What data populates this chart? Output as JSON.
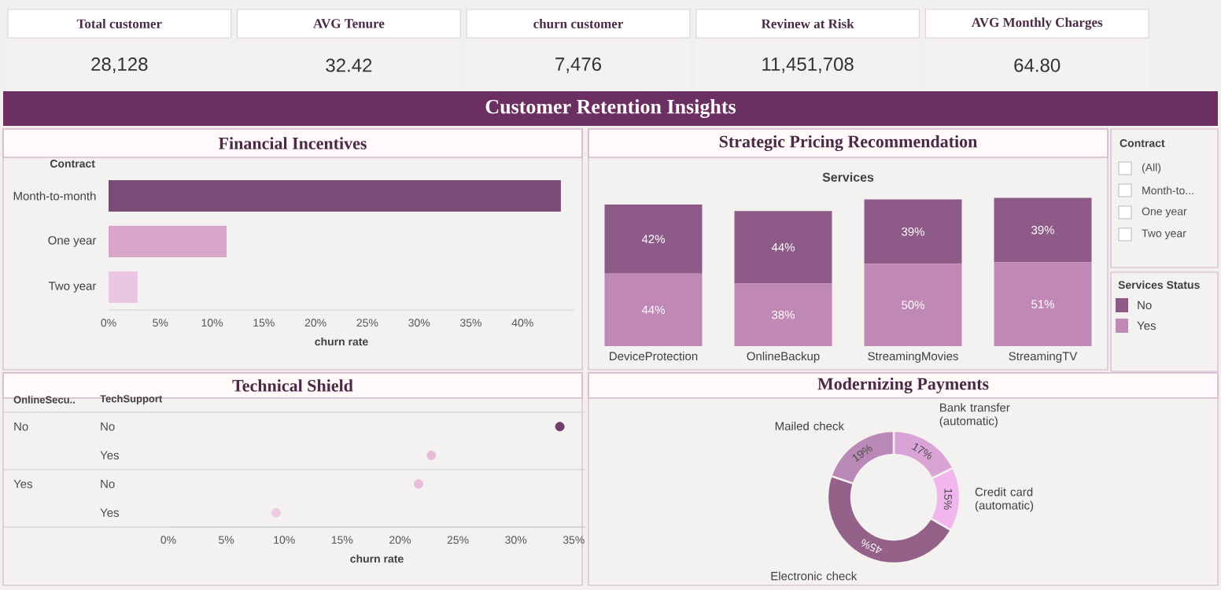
{
  "chart_data": [
    {
      "type": "other",
      "categories": [
        "Total customer",
        "AVG Tenure",
        "churn customer",
        "Revinew at Risk",
        "AVG Monthly Charges"
      ],
      "annotations": [
        "28,128",
        "32.42",
        "7,476",
        "11,451,708",
        "64.80"
      ]
    },
    {
      "type": "other",
      "title": "Customer Retention Insights"
    },
    {
      "type": "bar",
      "orientation": "horizontal",
      "title": "Financial Incentives",
      "ylabel": "Contract",
      "xlabel": "churn rate",
      "categories": [
        "Month-to-month",
        "One year",
        "Two year"
      ],
      "values": [
        43.7,
        11.4,
        2.8
      ],
      "colors": [
        "#7b4b78",
        "#d9a6ca",
        "#ebc6e2"
      ],
      "xlim": [
        0,
        45
      ],
      "xticks": [
        {
          "value": 0,
          "label": "0%"
        },
        {
          "value": 5,
          "label": "5%"
        },
        {
          "value": 10,
          "label": "10%"
        },
        {
          "value": 15,
          "label": "15%"
        },
        {
          "value": 20,
          "label": "20%"
        },
        {
          "value": 25,
          "label": "25%"
        },
        {
          "value": 30,
          "label": "30%"
        },
        {
          "value": 35,
          "label": "35%"
        },
        {
          "value": 40,
          "label": "40%"
        }
      ]
    },
    {
      "type": "bar",
      "stacked": true,
      "title": "Strategic Pricing Recommendation",
      "xlabel": "Services",
      "legend_title": "Services Status",
      "legend": "right",
      "categories": [
        "DeviceProtection",
        "OnlineBackup",
        "StreamingMovies",
        "StreamingTV"
      ],
      "series": [
        {
          "name": "Yes",
          "color": "#c088b4",
          "values": [
            44,
            38,
            50,
            51
          ],
          "value_labels": [
            "44%",
            "38%",
            "50%",
            "51%"
          ]
        },
        {
          "name": "No",
          "color": "#8e5a88",
          "values": [
            42,
            44,
            39,
            39
          ],
          "value_labels": [
            "42%",
            "44%",
            "39%",
            "39%"
          ]
        }
      ]
    },
    {
      "type": "other",
      "title": "Contract",
      "categories": [
        "(All)",
        "Month-to...",
        "One year",
        "Two year"
      ]
    },
    {
      "type": "scatter",
      "orientation": "horizontal",
      "title": "Technical Shield",
      "xlabel": "churn rate",
      "ylabel": "TechSupport",
      "y2label": "OnlineSecu..",
      "categories": [
        "No",
        "Yes",
        "No",
        "Yes"
      ],
      "y2_categories": [
        "No",
        null,
        "Yes",
        null
      ],
      "values": [
        33.8,
        22.7,
        21.6,
        9.3
      ],
      "colors": [
        "#6e3d6a",
        "#e6bcd6",
        "#e6bcd6",
        "#efc9e1"
      ],
      "xlim": [
        0,
        36
      ],
      "xticks": [
        {
          "value": 0,
          "label": "0%"
        },
        {
          "value": 5,
          "label": "5%"
        },
        {
          "value": 10,
          "label": "10%"
        },
        {
          "value": 15,
          "label": "15%"
        },
        {
          "value": 20,
          "label": "20%"
        },
        {
          "value": 25,
          "label": "25%"
        },
        {
          "value": 30,
          "label": "30%"
        },
        {
          "value": 35,
          "label": "35%"
        }
      ]
    },
    {
      "type": "donut",
      "title": "Modernizing Payments",
      "categories": [
        "Bank transfer (automatic)",
        "Credit card (automatic)",
        "Electronic check",
        "Mailed check"
      ],
      "values": [
        17,
        15,
        45,
        19
      ],
      "value_labels": [
        "17%",
        "15%",
        "45%",
        "19%"
      ],
      "colors": [
        "#d9a3d6",
        "#f2b6ef",
        "#946189",
        "#ba88b6"
      ]
    }
  ]
}
